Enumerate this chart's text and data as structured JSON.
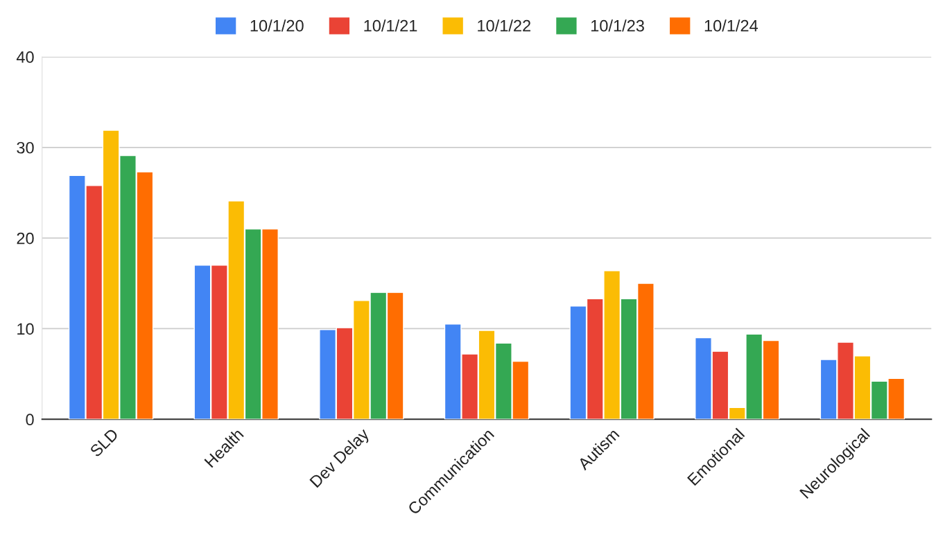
{
  "chart_data": {
    "type": "bar",
    "categories": [
      "SLD",
      "Health",
      "Dev Delay",
      "Communication",
      "Autism",
      "Emotional",
      "Neurological"
    ],
    "series": [
      {
        "name": "10/1/20",
        "color": "#4285f4",
        "values": [
          26.9,
          17.0,
          9.9,
          10.5,
          12.5,
          9.0,
          6.6
        ]
      },
      {
        "name": "10/1/21",
        "color": "#ea4335",
        "values": [
          25.8,
          17.0,
          10.1,
          7.2,
          13.3,
          7.5,
          8.5
        ]
      },
      {
        "name": "10/1/22",
        "color": "#fbbc04",
        "values": [
          31.9,
          24.1,
          13.1,
          9.8,
          16.4,
          1.3,
          7.0
        ]
      },
      {
        "name": "10/1/23",
        "color": "#34a853",
        "values": [
          29.1,
          21.0,
          14.0,
          8.4,
          13.3,
          9.4,
          4.2
        ]
      },
      {
        "name": "10/1/24",
        "color": "#ff6d01",
        "values": [
          27.3,
          21.0,
          14.0,
          6.4,
          15.0,
          8.7,
          4.5
        ]
      }
    ],
    "ylim": [
      0,
      40
    ],
    "yticks": [
      0,
      10,
      20,
      30,
      40
    ],
    "grid": "y",
    "legend": "top"
  }
}
